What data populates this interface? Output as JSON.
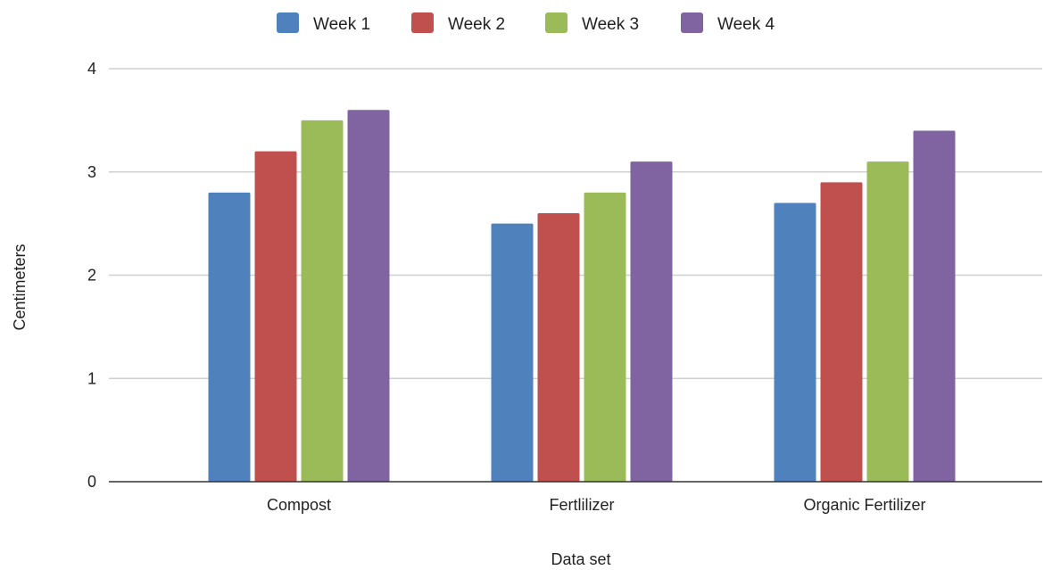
{
  "chart_data": {
    "type": "bar",
    "title": "",
    "xlabel": "Data set",
    "ylabel": "Centimeters",
    "categories": [
      "Compost",
      "Fertlilizer",
      "Organic Fertilizer"
    ],
    "series": [
      {
        "name": "Week 1",
        "color": "#4f81bd",
        "values": [
          2.8,
          2.5,
          2.7
        ]
      },
      {
        "name": "Week 2",
        "color": "#c0504d",
        "values": [
          3.2,
          2.6,
          2.9
        ]
      },
      {
        "name": "Week 3",
        "color": "#9bbb59",
        "values": [
          3.5,
          2.8,
          3.1
        ]
      },
      {
        "name": "Week 4",
        "color": "#8064a2",
        "values": [
          3.6,
          3.1,
          3.4
        ]
      }
    ],
    "ylim": [
      0,
      4
    ],
    "yticks": [
      "0",
      "1",
      "2",
      "3",
      "4"
    ],
    "grid": true,
    "legend_position": "top"
  }
}
